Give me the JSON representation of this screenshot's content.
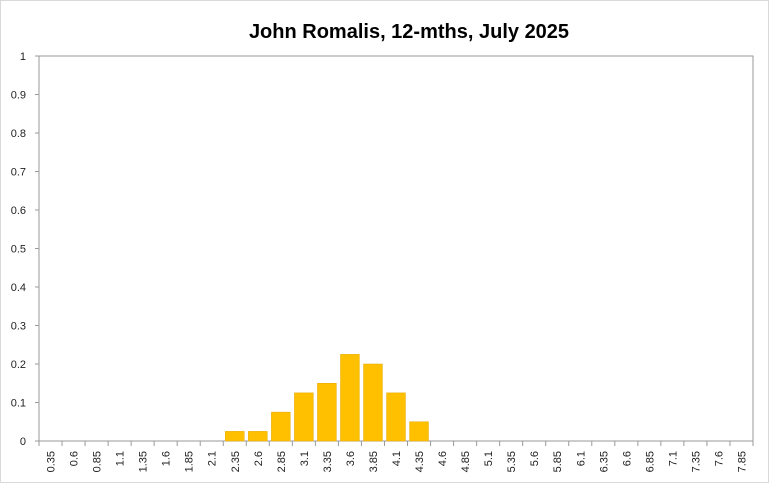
{
  "chart_data": {
    "type": "bar",
    "title": "John Romalis, 12-mths, July 2025",
    "xlabel": "",
    "ylabel": "",
    "ylim": [
      0,
      1
    ],
    "yticks": [
      "0",
      "0.1",
      "0.2",
      "0.3",
      "0.4",
      "0.5",
      "0.6",
      "0.7",
      "0.8",
      "0.9",
      "1"
    ],
    "categories": [
      "0.35",
      "0.6",
      "0.85",
      "1.1",
      "1.35",
      "1.6",
      "1.85",
      "2.1",
      "2.35",
      "2.6",
      "2.85",
      "3.1",
      "3.35",
      "3.6",
      "3.85",
      "4.1",
      "4.35",
      "4.6",
      "4.85",
      "5.1",
      "5.35",
      "5.6",
      "5.85",
      "6.1",
      "6.35",
      "6.6",
      "6.85",
      "7.1",
      "7.35",
      "7.6",
      "7.85"
    ],
    "values": [
      0,
      0,
      0,
      0,
      0,
      0,
      0,
      0,
      0.025,
      0.025,
      0.075,
      0.125,
      0.15,
      0.225,
      0.2,
      0.125,
      0.05,
      0,
      0,
      0,
      0,
      0,
      0,
      0,
      0,
      0,
      0,
      0,
      0,
      0,
      0
    ],
    "bar_color": "#FFC000",
    "grid": false,
    "legend": "none"
  }
}
